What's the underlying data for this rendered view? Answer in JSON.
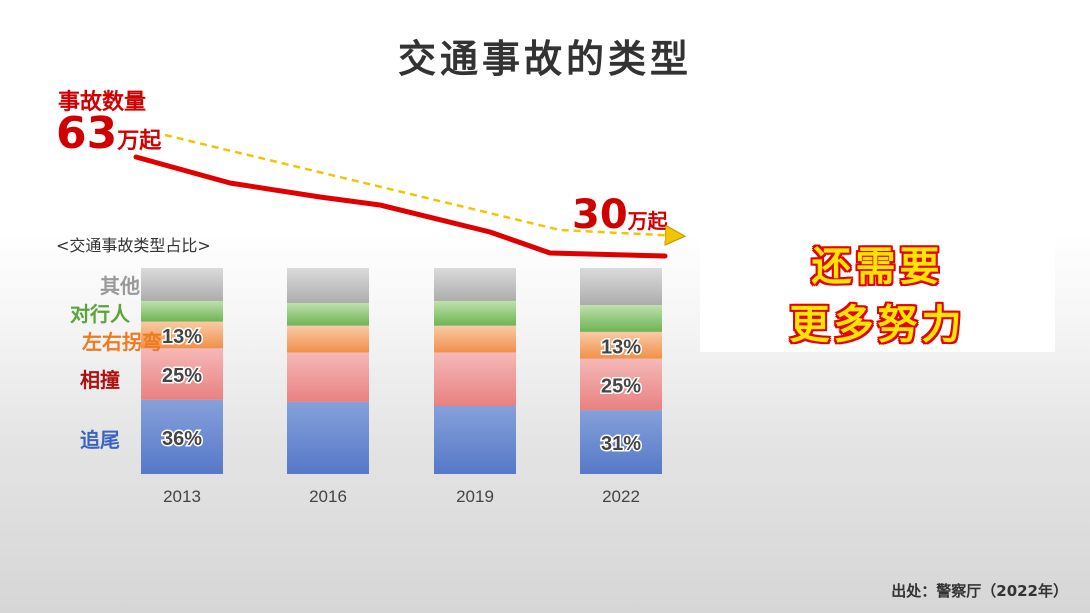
{
  "title": "交通事故的类型",
  "accident_count_label": "事故数量",
  "start_value": {
    "number": "63",
    "unit": "万起"
  },
  "end_value": {
    "number": "30",
    "unit": "万起"
  },
  "breakdown_subtitle": "<交通事故类型占比>",
  "slogan": {
    "line1": "还需要",
    "line2": "更多努力"
  },
  "source": "出处：警察厅（2022年）",
  "colors": {
    "accent_red": "#d00000",
    "trend_dash": "#f2c500",
    "other": "#9a9a9a",
    "pedestrian": "#5aaa3a",
    "turning": "#f08a3a",
    "collision": "#e85a5a",
    "rear_end": "#4a72c8",
    "slogan_fill": "#ffe600",
    "slogan_outline": "#e60000"
  },
  "categories": [
    {
      "key": "other",
      "label": "其他",
      "color": "#999999"
    },
    {
      "key": "pedestrian",
      "label": "对行人",
      "color": "#5aa53a"
    },
    {
      "key": "turning",
      "label": "左右拐弯",
      "color": "#f07a1e"
    },
    {
      "key": "collision",
      "label": "相撞",
      "color": "#b01010"
    },
    {
      "key": "rear_end",
      "label": "追尾",
      "color": "#3a64c0"
    }
  ],
  "chart_data": {
    "type": "bar",
    "stacked": true,
    "categories": [
      "2013",
      "2016",
      "2019",
      "2022"
    ],
    "series": [
      {
        "name": "追尾",
        "values": [
          36,
          35,
          33,
          31
        ],
        "labels": [
          "36%",
          "",
          "",
          "31%"
        ]
      },
      {
        "name": "相撞",
        "values": [
          25,
          24,
          26,
          25
        ],
        "labels": [
          "25%",
          "",
          "",
          "25%"
        ]
      },
      {
        "name": "左右拐弯",
        "values": [
          13,
          13,
          13,
          13
        ],
        "labels": [
          "13%",
          "",
          "",
          "13%"
        ]
      },
      {
        "name": "对行人",
        "values": [
          10,
          11,
          12,
          13
        ],
        "labels": [
          "",
          "",
          "",
          ""
        ]
      },
      {
        "name": "其他",
        "values": [
          16,
          17,
          16,
          18
        ],
        "labels": [
          "",
          "",
          "",
          ""
        ]
      }
    ],
    "ylim": [
      0,
      100
    ],
    "trend": {
      "label": "事故数量",
      "unit": "万起",
      "years": [
        "2013",
        "2016",
        "2019",
        "2022"
      ],
      "values": [
        63,
        50,
        38,
        30
      ]
    }
  }
}
